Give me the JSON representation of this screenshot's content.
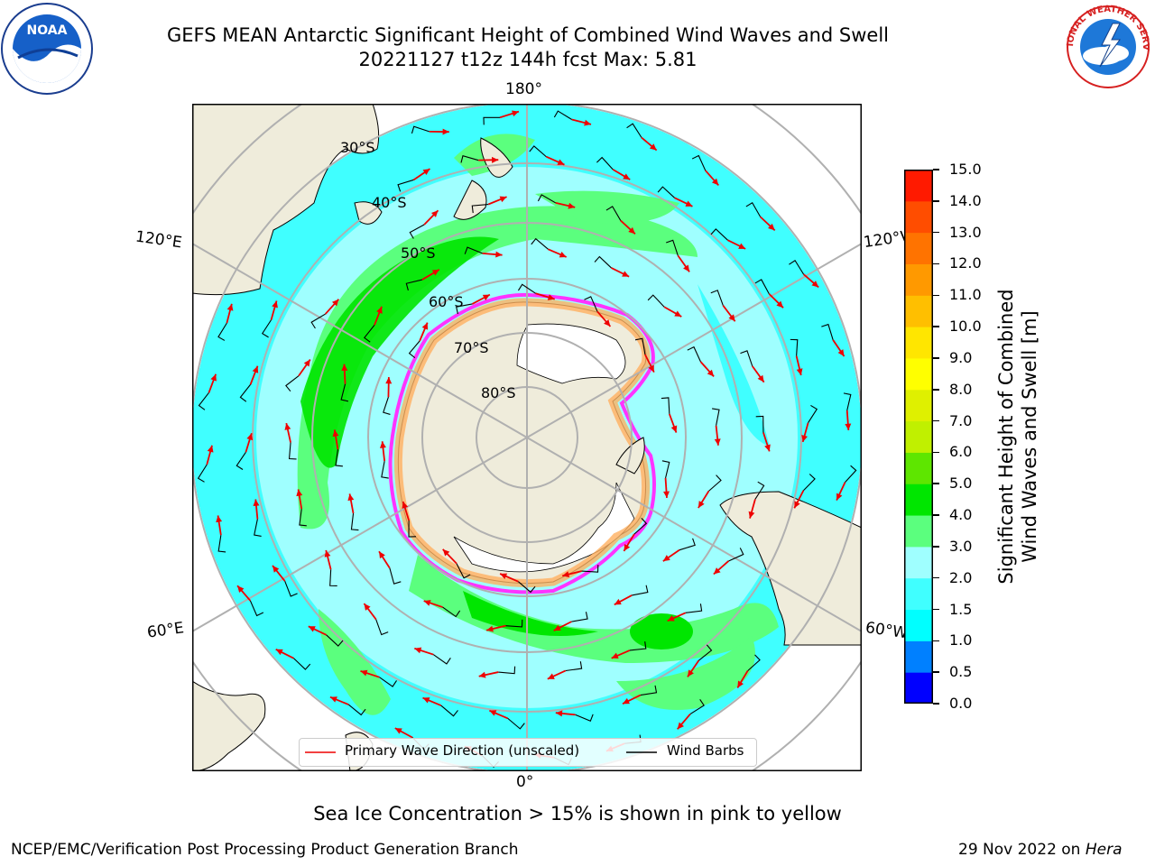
{
  "title": {
    "line1": "GEFS MEAN Antarctic Significant Height of Combined Wind Waves and Swell",
    "line2": "20221127 t12z 144h fcst   Max: 5.81"
  },
  "map": {
    "projection": "south-polar-stereographic",
    "lon_labels": {
      "top": "180°",
      "bottom": "0°",
      "left_upper": "120°E",
      "left_lower": "60°E",
      "right_upper": "120°W",
      "right_lower": "60°W"
    },
    "lat_labels": [
      "30°S",
      "40°S",
      "50°S",
      "60°S",
      "70°S",
      "80°S"
    ],
    "colors": {
      "land": "#efecdb",
      "ocean_outside": "#ffffff",
      "grid": "#b0b0b0",
      "coast": "#000000",
      "wave_arrow": "#ee0000",
      "wind_barb": "#000000",
      "sea_ice_edge": "#ff33ff",
      "sea_ice_inner": "#ffb060"
    }
  },
  "colorbar": {
    "label_line1": "Significant Height of Combined",
    "label_line2": "Wind Waves and Swell [m]",
    "ticks": [
      "0.0",
      "0.5",
      "1.0",
      "1.5",
      "2.0",
      "3.0",
      "4.0",
      "5.0",
      "6.0",
      "7.0",
      "8.0",
      "9.0",
      "10.0",
      "11.0",
      "12.0",
      "13.0",
      "14.0",
      "15.0"
    ],
    "colors": [
      "#0000ff",
      "#0080ff",
      "#00ffff",
      "#40ffff",
      "#9fffff",
      "#5bff7e",
      "#00e600",
      "#5ee600",
      "#c0f000",
      "#dff000",
      "#ffff00",
      "#ffe600",
      "#ffbf00",
      "#ff9900",
      "#ff7300",
      "#ff4d00",
      "#ff1a00"
    ]
  },
  "legend": {
    "wave_label": "Primary Wave Direction (unscaled)",
    "wind_label": "Wind Barbs"
  },
  "caption": "Sea Ice Concentration > 15% is shown in pink to yellow",
  "credit": {
    "left": "NCEP/EMC/Verification Post Processing Product Generation Branch",
    "right_date": "29 Nov 2022 on ",
    "right_host": "Hera"
  },
  "logos": {
    "noaa_text": "NOAA",
    "nws_text": "NATIONAL WEATHER SERVICE"
  }
}
